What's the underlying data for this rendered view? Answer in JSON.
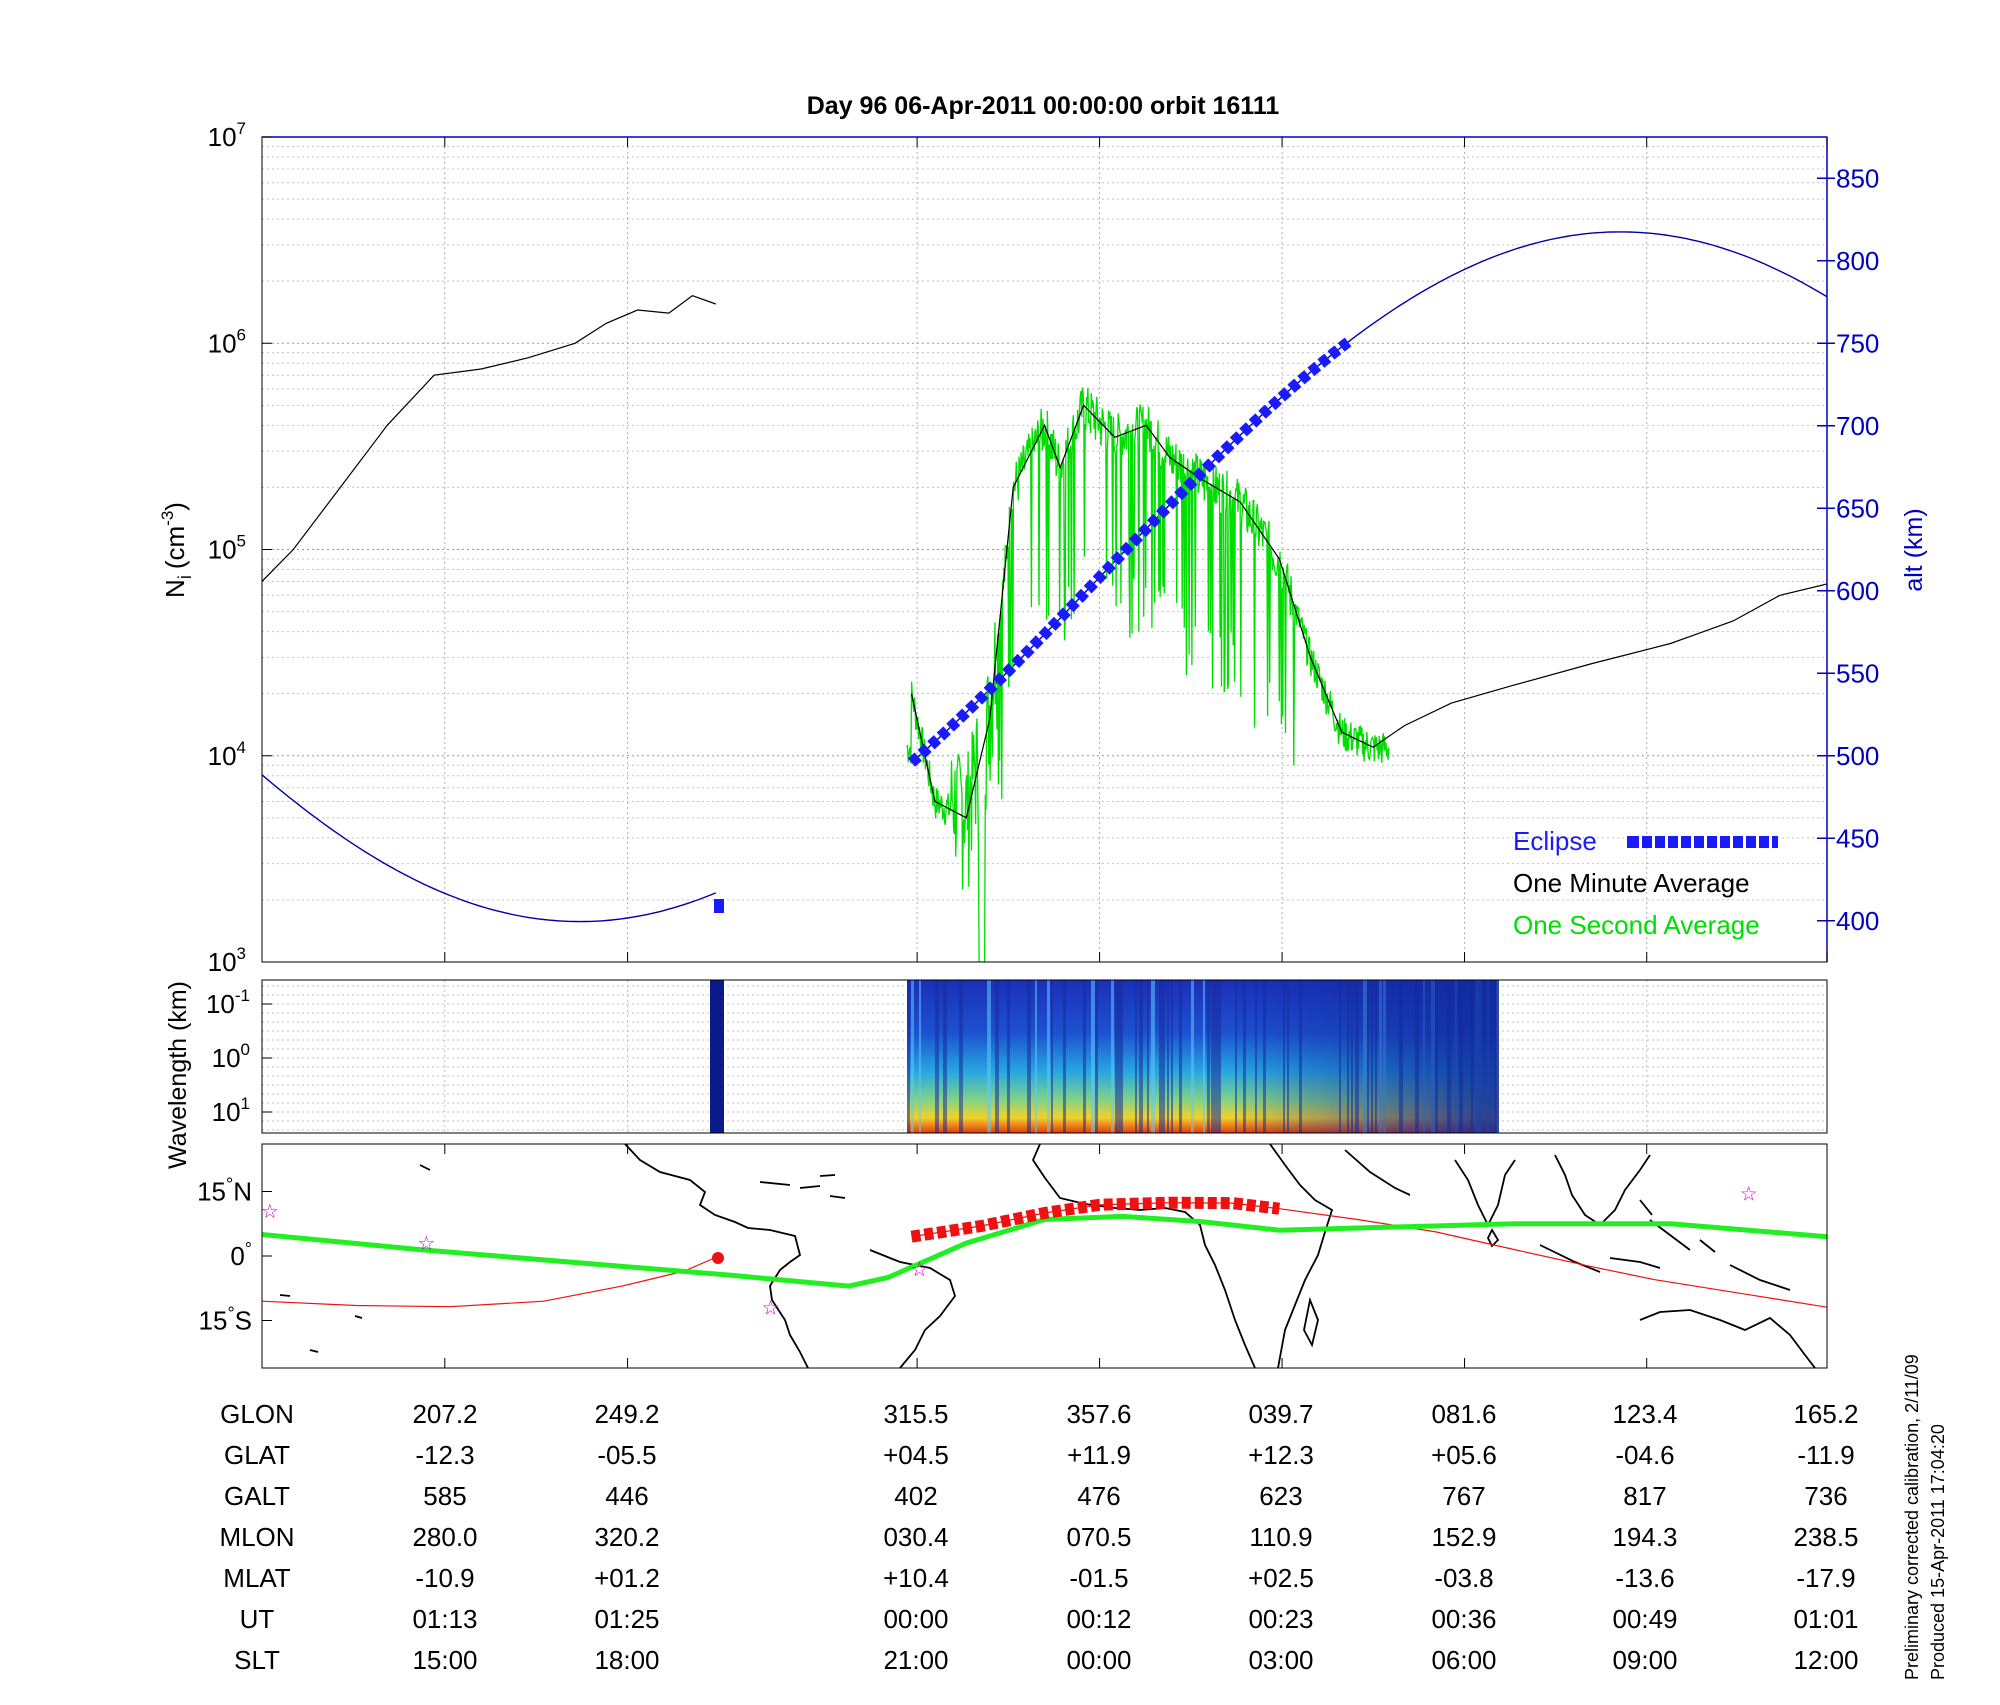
{
  "chart_data": [
    {
      "type": "line",
      "title": "Day 96  06-Apr-2011 00:00:00   orbit 16111",
      "ylabel": "N",
      "ylabel_sub": "i",
      "ylabel_unit_open": "(cm",
      "ylabel_unit_sup": "-3",
      "ylabel_unit_close": ")",
      "y2label": "alt (km)",
      "yscale": "log",
      "ylim": [
        1000,
        10000000
      ],
      "y2lim": [
        375,
        875
      ],
      "y_ticks": [
        {
          "base": "10",
          "exp": "3",
          "value": 1000
        },
        {
          "base": "10",
          "exp": "4",
          "value": 10000
        },
        {
          "base": "10",
          "exp": "5",
          "value": 100000
        },
        {
          "base": "10",
          "exp": "6",
          "value": 1000000
        },
        {
          "base": "10",
          "exp": "7",
          "value": 10000000
        }
      ],
      "y2_ticks": [
        "400",
        "450",
        "500",
        "550",
        "600",
        "650",
        "700",
        "750",
        "800",
        "850"
      ],
      "grid": true,
      "legend_position": "bottom-right",
      "series": [
        {
          "name": "One Minute Average",
          "color": "#000000",
          "points": [
            [
              0.0,
              70000
            ],
            [
              0.02,
              100000
            ],
            [
              0.05,
              200000
            ],
            [
              0.08,
              400000
            ],
            [
              0.11,
              700000
            ],
            [
              0.14,
              750000
            ],
            [
              0.17,
              850000
            ],
            [
              0.2,
              1000000
            ],
            [
              0.22,
              1250000
            ],
            [
              0.24,
              1450000
            ],
            [
              0.26,
              1400000
            ],
            [
              0.275,
              1700000
            ],
            [
              0.29,
              1550000
            ],
            [
              null,
              null
            ],
            [
              0.415,
              20000
            ],
            [
              0.43,
              6000
            ],
            [
              0.45,
              5000
            ],
            [
              0.465,
              15000
            ],
            [
              0.48,
              200000
            ],
            [
              0.5,
              400000
            ],
            [
              0.51,
              250000
            ],
            [
              0.525,
              500000
            ],
            [
              0.545,
              350000
            ],
            [
              0.565,
              400000
            ],
            [
              0.58,
              280000
            ],
            [
              0.6,
              220000
            ],
            [
              0.625,
              170000
            ],
            [
              0.65,
              90000
            ],
            [
              0.67,
              30000
            ],
            [
              0.69,
              13000
            ],
            [
              0.71,
              11000
            ],
            [
              0.73,
              14000
            ],
            [
              0.76,
              18000
            ],
            [
              0.8,
              22000
            ],
            [
              0.85,
              28000
            ],
            [
              0.9,
              35000
            ],
            [
              0.94,
              45000
            ],
            [
              0.97,
              60000
            ],
            [
              1.0,
              68000
            ]
          ]
        },
        {
          "name": "One Second Average",
          "color": "#00dd00"
        },
        {
          "name": "Eclipse",
          "color": "#1a1aff"
        },
        {
          "name": "alt",
          "axis": "right",
          "color": "#0000aa"
        }
      ],
      "legend": [
        "Eclipse",
        "One Minute Average",
        "One Second Average"
      ]
    },
    {
      "type": "heatmap",
      "ylabel": "Wavelength (km)",
      "y_ticks": [
        {
          "base": "10",
          "exp": "-1"
        },
        {
          "base": "10",
          "exp": "0"
        },
        {
          "base": "10",
          "exp": "1"
        }
      ]
    },
    {
      "type": "line",
      "subtype": "map",
      "y_ticks": [
        {
          "deg": "15",
          "hemi": "N"
        },
        {
          "deg": "0",
          "hemi": ""
        },
        {
          "deg": "15",
          "hemi": "S"
        }
      ]
    }
  ],
  "table": {
    "row_labels": [
      "GLON",
      "GLAT",
      "GALT",
      "MLON",
      "MLAT",
      "UT",
      "SLT"
    ],
    "columns": [
      [
        "207.2",
        "-12.3",
        "585",
        "280.0",
        "-10.9",
        "01:13",
        "15:00"
      ],
      [
        "249.2",
        "-05.5",
        "446",
        "320.2",
        "+01.2",
        "01:25",
        "18:00"
      ],
      [
        "315.5",
        "+04.5",
        "402",
        "030.4",
        "+10.4",
        "00:00",
        "21:00"
      ],
      [
        "357.6",
        "+11.9",
        "476",
        "070.5",
        "-01.5",
        "00:12",
        "00:00"
      ],
      [
        "039.7",
        "+12.3",
        "623",
        "110.9",
        "+02.5",
        "00:23",
        "03:00"
      ],
      [
        "081.6",
        "+05.6",
        "767",
        "152.9",
        "-03.8",
        "00:36",
        "06:00"
      ],
      [
        "123.4",
        "-04.6",
        "817",
        "194.3",
        "-13.6",
        "00:49",
        "09:00"
      ],
      [
        "165.2",
        "-11.9",
        "736",
        "238.5",
        "-17.9",
        "01:01",
        "12:00"
      ]
    ]
  },
  "footnote": {
    "line1": "Preliminary corrected calibration, 2/11/09",
    "line2": "Produced 15-Apr-2011 17:04:20"
  },
  "colors": {
    "axis_right": "#0000c0",
    "eclipse": "#1a1aff",
    "minute": "#000000",
    "second": "#00dd00",
    "map_track": "#22ee22",
    "map_red": "#ee1111"
  }
}
